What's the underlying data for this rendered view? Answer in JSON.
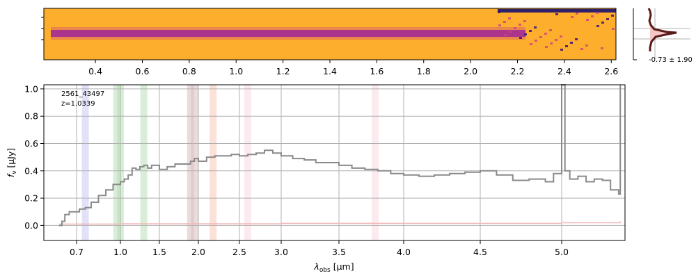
{
  "colors": {
    "flux": "#8a8a8a",
    "error": "#f4b8b8",
    "grid": "#b0b0b0",
    "hist_fill": "#f4c6c6",
    "hist_line": "#5a1a1a",
    "map_bg": "#fcae2c",
    "map_trace": "#8a1ea0"
  },
  "chart_data": [
    {
      "type": "heatmap",
      "description_axis": "top axis wavelength [um]",
      "top_ticks": [
        "0.4",
        "0.6",
        "0.8",
        "1.0",
        "1.2",
        "1.4",
        "1.6",
        "1.8",
        "2.0",
        "2.2",
        "2.4",
        "2.6"
      ],
      "top_tick_values": [
        0.4,
        0.6,
        0.8,
        1.0,
        1.2,
        1.4,
        1.6,
        1.8,
        2.0,
        2.2,
        2.4,
        2.6
      ],
      "x_range": [
        0.18,
        2.62
      ],
      "colormap": "plasma",
      "grid": false
    },
    {
      "type": "line",
      "panel": "histogram",
      "label": "-0.73 ± 1.90",
      "grid": true
    },
    {
      "type": "line",
      "annotation": [
        "2561_43497",
        "z=1.0339"
      ],
      "xlabel_base": "λ",
      "xlabel_sub": "obs",
      "xlabel_unit": " [μm]",
      "ylabel": "f",
      "ylabel_sub": "ν",
      "ylabel_unit": " [μJy]",
      "x_ticks": [
        "0.7",
        "1.0",
        "1.5",
        "2.0",
        "2.5",
        "3.0",
        "3.5",
        "4.0",
        "4.5",
        "5.0"
      ],
      "x_tick_values": [
        0.7,
        1.0,
        1.5,
        2.0,
        2.5,
        3.0,
        3.5,
        4.0,
        4.5,
        5.0
      ],
      "y_ticks": [
        "0.0",
        "0.2",
        "0.4",
        "0.6",
        "0.8",
        "1.0"
      ],
      "y_tick_values": [
        0.0,
        0.2,
        0.4,
        0.6,
        0.8,
        1.0
      ],
      "xlim": [
        0.55,
        5.42
      ],
      "ylim": [
        -0.11,
        1.03
      ],
      "x_scale": "wavelength-resampled",
      "grid": true,
      "series": [
        {
          "x": [
            0.58,
            0.6,
            0.62,
            0.65,
            0.68,
            0.72,
            0.76,
            0.8,
            0.85,
            0.9,
            0.95,
            1.0,
            1.05,
            1.1,
            1.15,
            1.2,
            1.25,
            1.3,
            1.35,
            1.4,
            1.5,
            1.6,
            1.7,
            1.8,
            1.9,
            1.95,
            2.0,
            2.1,
            2.2,
            2.3,
            2.4,
            2.5,
            2.6,
            2.7,
            2.8,
            2.9,
            3.0,
            3.1,
            3.2,
            3.3,
            3.4,
            3.5,
            3.6,
            3.7,
            3.8,
            3.9,
            4.0,
            4.1,
            4.2,
            4.3,
            4.4,
            4.5,
            4.6,
            4.7,
            4.8,
            4.9,
            4.95,
            5.0,
            5.02,
            5.05,
            5.1,
            5.15,
            5.2,
            5.25,
            5.3,
            5.35,
            5.36
          ],
          "y": [
            0.0,
            0.03,
            0.08,
            0.1,
            0.1,
            0.12,
            0.13,
            0.17,
            0.22,
            0.26,
            0.3,
            0.32,
            0.34,
            0.37,
            0.42,
            0.41,
            0.43,
            0.44,
            0.42,
            0.44,
            0.41,
            0.43,
            0.45,
            0.45,
            0.47,
            0.49,
            0.47,
            0.5,
            0.51,
            0.51,
            0.52,
            0.51,
            0.52,
            0.53,
            0.55,
            0.53,
            0.51,
            0.49,
            0.48,
            0.46,
            0.46,
            0.44,
            0.42,
            0.41,
            0.4,
            0.38,
            0.37,
            0.36,
            0.37,
            0.38,
            0.39,
            0.4,
            0.37,
            0.33,
            0.34,
            0.32,
            0.38,
            1.03,
            0.4,
            0.34,
            0.36,
            0.32,
            0.34,
            0.33,
            0.26,
            0.23,
            1.03
          ]
        },
        {
          "x": [
            0.58,
            1.0,
            2.0,
            3.0,
            4.0,
            5.0,
            5.36
          ],
          "y": [
            0.01,
            0.012,
            0.012,
            0.015,
            0.015,
            0.02,
            0.03
          ]
        }
      ],
      "bands": [
        {
          "x": 0.76,
          "color": "#c8c8f0"
        },
        {
          "x": 0.975,
          "color": "#b8e0b8"
        },
        {
          "x": 1.0,
          "color": "#b8e0b8"
        },
        {
          "x": 1.3,
          "color": "#b8e0b8"
        },
        {
          "x": 1.9,
          "color": "#d8c0c0"
        },
        {
          "x": 1.95,
          "color": "#d8c0c0"
        },
        {
          "x": 2.18,
          "color": "#f8c8b8"
        },
        {
          "x": 2.6,
          "color": "#f8d8e0"
        },
        {
          "x": 3.78,
          "color": "#f8d8e0"
        }
      ]
    }
  ]
}
